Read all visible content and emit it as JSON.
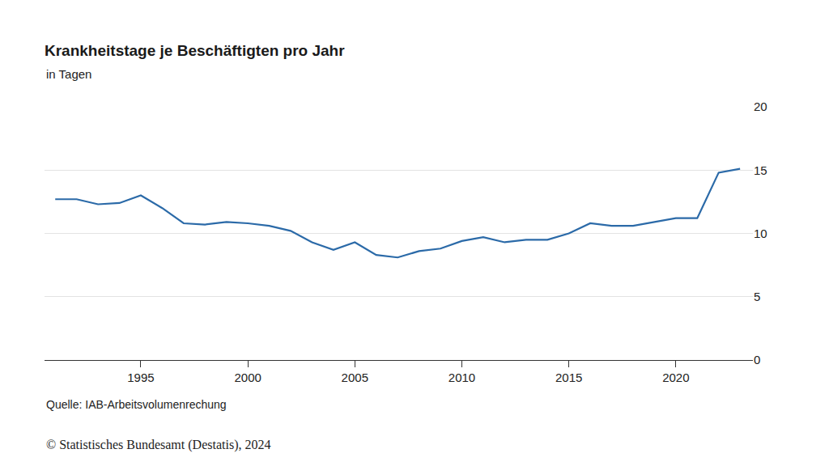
{
  "chart_data": {
    "type": "line",
    "title": "Krankheitstage je Beschäftigten pro Jahr",
    "subtitle": "in Tagen",
    "source": "Quelle: IAB-Arbeitsvolumenrechung",
    "copyright": "© Statistisches Bundesamt (Destatis), 2024",
    "x": [
      1991,
      1992,
      1993,
      1994,
      1995,
      1996,
      1997,
      1998,
      1999,
      2000,
      2001,
      2002,
      2003,
      2004,
      2005,
      2006,
      2007,
      2008,
      2009,
      2010,
      2011,
      2012,
      2013,
      2014,
      2015,
      2016,
      2017,
      2018,
      2019,
      2020,
      2021,
      2022,
      2023
    ],
    "values": [
      12.7,
      12.7,
      12.3,
      12.4,
      13.0,
      12.0,
      10.8,
      10.7,
      10.9,
      10.8,
      10.6,
      10.2,
      9.3,
      8.7,
      9.3,
      8.3,
      8.1,
      8.6,
      8.8,
      9.4,
      9.7,
      9.3,
      9.5,
      9.5,
      10.0,
      10.8,
      10.6,
      10.6,
      10.9,
      11.2,
      11.2,
      14.8,
      15.1
    ],
    "color": "#2b6aa8",
    "xlim": [
      1990.5,
      2023.6
    ],
    "xticks": [
      1995,
      2000,
      2005,
      2010,
      2015,
      2020
    ],
    "ylim": [
      0,
      20
    ],
    "yticks": [
      0,
      5,
      10,
      15,
      20
    ],
    "grid": true
  }
}
